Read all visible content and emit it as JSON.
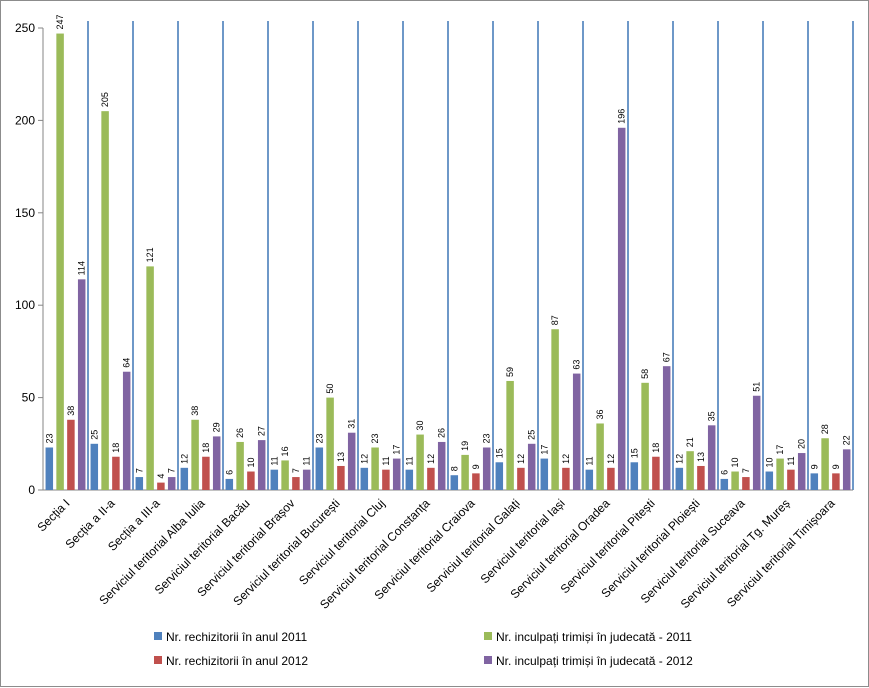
{
  "chart_data": {
    "type": "bar",
    "categories": [
      "Secția I",
      "Secția a II-a",
      "Secția a III-a",
      "Serviciul teritorial Alba Iulia",
      "Serviciul teritorial Bacău",
      "Serviciul teritorial Brașov",
      "Serviciul teritorial București",
      "Serviciul teritorial Cluj",
      "Serviciul teritorial  Constanța",
      "Serviciul teritorial Craiova",
      "Serviciul teritorial Galați",
      "Serviciul teritorial Iași",
      "Serviciul teritorial Oradea",
      "Serviciul teritorial Pitești",
      "Serviciul teritorial Ploiești",
      "Serviciul teritorial Suceava",
      "Serviciul teritorial Tg. Mureș",
      "Serviciul teritorial Timișoara"
    ],
    "series": [
      {
        "name": "Nr. rechizitorii în anul 2011",
        "color": "#4f81bd",
        "values": [
          23,
          25,
          7,
          12,
          6,
          11,
          23,
          12,
          11,
          8,
          15,
          17,
          11,
          15,
          12,
          6,
          10,
          9
        ]
      },
      {
        "name": "Nr. inculpați trimiși în judecată - 2011",
        "color": "#9bbb59",
        "values": [
          247,
          205,
          121,
          38,
          26,
          16,
          50,
          23,
          30,
          19,
          59,
          87,
          36,
          58,
          21,
          10,
          17,
          28
        ]
      },
      {
        "name": "Nr. rechizitorii în anul 2012",
        "color": "#c0504d",
        "values": [
          38,
          18,
          4,
          18,
          10,
          7,
          13,
          11,
          12,
          9,
          12,
          12,
          12,
          18,
          13,
          7,
          11,
          9
        ]
      },
      {
        "name": "Nr. inculpați trimiși în judecată - 2012",
        "color": "#8064a2",
        "values": [
          114,
          64,
          7,
          29,
          27,
          11,
          31,
          17,
          26,
          23,
          25,
          63,
          196,
          67,
          35,
          51,
          20,
          22
        ]
      }
    ],
    "ylim": [
      0,
      250
    ],
    "yticks": [
      0,
      50,
      100,
      150,
      200,
      250
    ],
    "title": "",
    "xlabel": "",
    "ylabel": "",
    "grid": "vertical separators between categories",
    "legend_position": "bottom",
    "separator_color": "#4a7ebb"
  }
}
